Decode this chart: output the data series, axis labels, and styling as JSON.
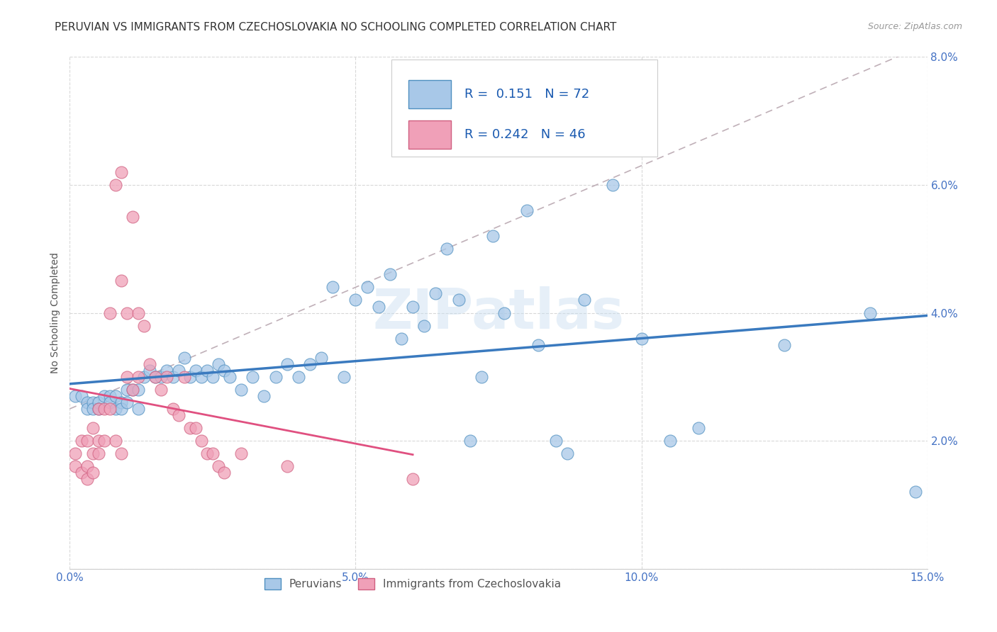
{
  "title": "PERUVIAN VS IMMIGRANTS FROM CZECHOSLOVAKIA NO SCHOOLING COMPLETED CORRELATION CHART",
  "source": "Source: ZipAtlas.com",
  "ylabel": "No Schooling Completed",
  "xlim": [
    0,
    0.15
  ],
  "ylim": [
    0,
    0.08
  ],
  "R1": 0.151,
  "N1": 72,
  "R2": 0.242,
  "N2": 46,
  "blue_line_color": "#3a7abf",
  "pink_line_color": "#e05080",
  "blue_scatter_face": "#a8c8e8",
  "blue_scatter_edge": "#5090c0",
  "pink_scatter_face": "#f0a0b8",
  "pink_scatter_edge": "#d06080",
  "ref_dash_color": "#d0a0a8",
  "grid_color": "#d8d8d8",
  "background_color": "#ffffff",
  "tick_color": "#4472c4",
  "blue_points": [
    [
      0.001,
      0.027
    ],
    [
      0.002,
      0.027
    ],
    [
      0.003,
      0.026
    ],
    [
      0.003,
      0.025
    ],
    [
      0.004,
      0.026
    ],
    [
      0.004,
      0.025
    ],
    [
      0.005,
      0.026
    ],
    [
      0.005,
      0.025
    ],
    [
      0.006,
      0.027
    ],
    [
      0.007,
      0.027
    ],
    [
      0.007,
      0.026
    ],
    [
      0.008,
      0.025
    ],
    [
      0.008,
      0.027
    ],
    [
      0.009,
      0.026
    ],
    [
      0.009,
      0.025
    ],
    [
      0.01,
      0.028
    ],
    [
      0.01,
      0.026
    ],
    [
      0.011,
      0.028
    ],
    [
      0.012,
      0.028
    ],
    [
      0.012,
      0.025
    ],
    [
      0.013,
      0.03
    ],
    [
      0.014,
      0.031
    ],
    [
      0.015,
      0.03
    ],
    [
      0.016,
      0.03
    ],
    [
      0.017,
      0.031
    ],
    [
      0.018,
      0.03
    ],
    [
      0.019,
      0.031
    ],
    [
      0.02,
      0.033
    ],
    [
      0.021,
      0.03
    ],
    [
      0.022,
      0.031
    ],
    [
      0.023,
      0.03
    ],
    [
      0.024,
      0.031
    ],
    [
      0.025,
      0.03
    ],
    [
      0.026,
      0.032
    ],
    [
      0.027,
      0.031
    ],
    [
      0.028,
      0.03
    ],
    [
      0.03,
      0.028
    ],
    [
      0.032,
      0.03
    ],
    [
      0.034,
      0.027
    ],
    [
      0.036,
      0.03
    ],
    [
      0.038,
      0.032
    ],
    [
      0.04,
      0.03
    ],
    [
      0.042,
      0.032
    ],
    [
      0.044,
      0.033
    ],
    [
      0.046,
      0.044
    ],
    [
      0.048,
      0.03
    ],
    [
      0.05,
      0.042
    ],
    [
      0.052,
      0.044
    ],
    [
      0.054,
      0.041
    ],
    [
      0.056,
      0.046
    ],
    [
      0.058,
      0.036
    ],
    [
      0.06,
      0.041
    ],
    [
      0.062,
      0.038
    ],
    [
      0.064,
      0.043
    ],
    [
      0.066,
      0.05
    ],
    [
      0.068,
      0.042
    ],
    [
      0.07,
      0.02
    ],
    [
      0.072,
      0.03
    ],
    [
      0.074,
      0.052
    ],
    [
      0.076,
      0.04
    ],
    [
      0.08,
      0.056
    ],
    [
      0.082,
      0.035
    ],
    [
      0.085,
      0.02
    ],
    [
      0.087,
      0.018
    ],
    [
      0.09,
      0.042
    ],
    [
      0.095,
      0.06
    ],
    [
      0.1,
      0.036
    ],
    [
      0.105,
      0.02
    ],
    [
      0.11,
      0.022
    ],
    [
      0.125,
      0.035
    ],
    [
      0.14,
      0.04
    ],
    [
      0.148,
      0.012
    ]
  ],
  "pink_points": [
    [
      0.001,
      0.018
    ],
    [
      0.001,
      0.016
    ],
    [
      0.002,
      0.02
    ],
    [
      0.002,
      0.015
    ],
    [
      0.003,
      0.02
    ],
    [
      0.003,
      0.016
    ],
    [
      0.003,
      0.014
    ],
    [
      0.004,
      0.022
    ],
    [
      0.004,
      0.018
    ],
    [
      0.004,
      0.015
    ],
    [
      0.005,
      0.025
    ],
    [
      0.005,
      0.02
    ],
    [
      0.005,
      0.018
    ],
    [
      0.006,
      0.025
    ],
    [
      0.006,
      0.02
    ],
    [
      0.007,
      0.04
    ],
    [
      0.007,
      0.025
    ],
    [
      0.008,
      0.06
    ],
    [
      0.008,
      0.02
    ],
    [
      0.009,
      0.062
    ],
    [
      0.009,
      0.045
    ],
    [
      0.009,
      0.018
    ],
    [
      0.01,
      0.04
    ],
    [
      0.01,
      0.03
    ],
    [
      0.011,
      0.055
    ],
    [
      0.011,
      0.028
    ],
    [
      0.012,
      0.04
    ],
    [
      0.012,
      0.03
    ],
    [
      0.013,
      0.038
    ],
    [
      0.014,
      0.032
    ],
    [
      0.015,
      0.03
    ],
    [
      0.016,
      0.028
    ],
    [
      0.017,
      0.03
    ],
    [
      0.018,
      0.025
    ],
    [
      0.019,
      0.024
    ],
    [
      0.02,
      0.03
    ],
    [
      0.021,
      0.022
    ],
    [
      0.022,
      0.022
    ],
    [
      0.023,
      0.02
    ],
    [
      0.024,
      0.018
    ],
    [
      0.025,
      0.018
    ],
    [
      0.026,
      0.016
    ],
    [
      0.027,
      0.015
    ],
    [
      0.03,
      0.018
    ],
    [
      0.038,
      0.016
    ],
    [
      0.06,
      0.014
    ]
  ],
  "watermark": "ZIPatlas",
  "title_fontsize": 11,
  "axis_label_fontsize": 10,
  "tick_fontsize": 11
}
